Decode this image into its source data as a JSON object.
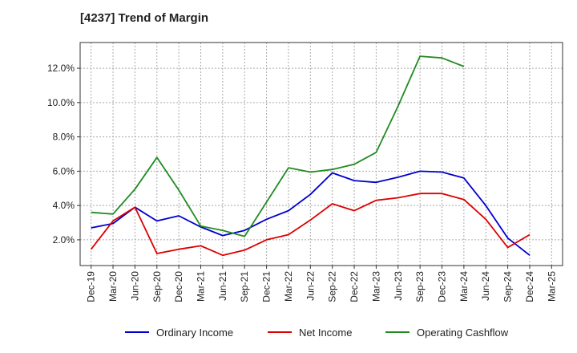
{
  "chart_data": {
    "type": "line",
    "title": "[4237]  Trend of Margin",
    "xlabel": "",
    "ylabel": "",
    "categories": [
      "Dec-19",
      "Mar-20",
      "Jun-20",
      "Sep-20",
      "Dec-20",
      "Mar-21",
      "Jun-21",
      "Sep-21",
      "Dec-21",
      "Mar-22",
      "Jun-22",
      "Sep-22",
      "Dec-22",
      "Mar-23",
      "Jun-23",
      "Sep-23",
      "Dec-23",
      "Mar-24",
      "Jun-24",
      "Sep-24",
      "Dec-24",
      "Mar-25"
    ],
    "ylim": [
      0.5,
      13.5
    ],
    "yticks": [
      2.0,
      4.0,
      6.0,
      8.0,
      10.0,
      12.0
    ],
    "ytick_labels": [
      "2.0%",
      "4.0%",
      "6.0%",
      "8.0%",
      "10.0%",
      "12.0%"
    ],
    "grid": true,
    "legend_position": "bottom",
    "series": [
      {
        "name": "Ordinary Income",
        "color": "#0000cc",
        "values": [
          2.7,
          2.95,
          3.9,
          3.1,
          3.4,
          2.75,
          2.25,
          2.55,
          3.2,
          3.7,
          4.65,
          5.9,
          5.45,
          5.35,
          5.65,
          6.0,
          5.95,
          5.6,
          4.0,
          2.1,
          1.1,
          null
        ]
      },
      {
        "name": "Net Income",
        "color": "#dd0000",
        "values": [
          1.45,
          3.1,
          3.9,
          1.2,
          1.45,
          1.65,
          1.1,
          1.4,
          2.0,
          2.3,
          3.15,
          4.1,
          3.7,
          4.3,
          4.45,
          4.7,
          4.7,
          4.35,
          3.2,
          1.55,
          2.3,
          null
        ]
      },
      {
        "name": "Operating Cashflow",
        "color": "#228b22",
        "values": [
          3.6,
          3.5,
          4.95,
          6.8,
          4.9,
          2.8,
          2.55,
          2.2,
          4.2,
          6.2,
          5.95,
          6.1,
          6.4,
          7.1,
          9.8,
          12.7,
          12.6,
          12.1,
          null,
          null,
          null,
          null
        ]
      }
    ]
  }
}
